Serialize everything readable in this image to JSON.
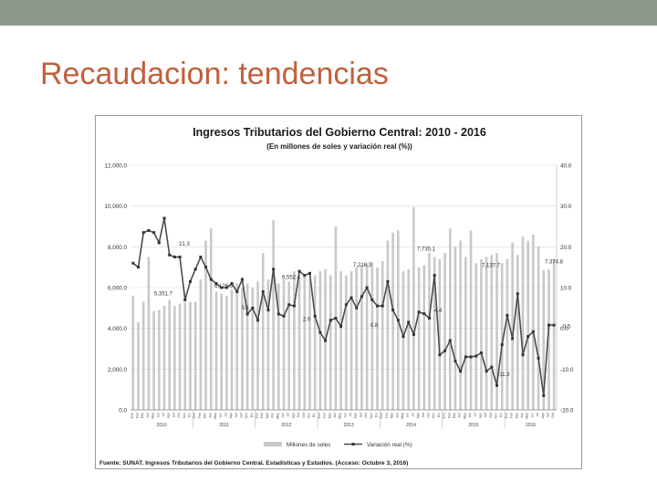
{
  "slide": {
    "title": "Recaudacion: tendencias"
  },
  "colors": {
    "title": "#c0603c",
    "topbar": "#8c9a8e",
    "bars": "#c8c8c8",
    "line": "#4d4d4d",
    "grid": "#d9d9d9"
  },
  "chart_data": {
    "type": "bar",
    "title": "Ingresos Tributarios del Gobierno Central: 2010 - 2016",
    "subtitle": "(En millones de soles y variación real (%))",
    "source": "Fuente: SUNAT. Ingresos Tributarios del Gobierno Central. Estadísticas y Estudios. (Acceso: Octubre 3, 2016)",
    "left_axis": {
      "ticks": [
        "12,000.0",
        "10,000.0",
        "8,000.0",
        "6,000.0",
        "4,000.0",
        "2,000.0",
        "0.0"
      ],
      "ylim": [
        0,
        12000
      ]
    },
    "right_axis": {
      "ticks": [
        "40.0",
        "30.0",
        "20.0",
        "10.0",
        "0.0",
        "-10.0",
        "-20.0"
      ],
      "ylim": [
        -20,
        40
      ]
    },
    "years": [
      "2010",
      "2011",
      "2012",
      "2013",
      "2014",
      "2015",
      "2016"
    ],
    "month_labels": [
      "Ene",
      "Feb",
      "Mar",
      "Abr",
      "May",
      "Jun",
      "Jul",
      "Ago",
      "Set",
      "Oct",
      "Nov",
      "Dic"
    ],
    "grid": true,
    "legend_position": "bottom",
    "series": [
      {
        "name": "Millones de soles",
        "type": "bar",
        "axis": "left",
        "values": [
          5600,
          4300,
          5300,
          7500,
          4850,
          4900,
          5100,
          5400,
          5100,
          5200,
          5300,
          5300,
          5300,
          6400,
          8300,
          8900,
          5800,
          5700,
          5600,
          5900,
          6200,
          6000,
          6200,
          6000,
          6300,
          7700,
          6400,
          9300,
          6200,
          6400,
          6300,
          6800,
          6500,
          6600,
          6400,
          6600,
          6800,
          6900,
          6600,
          9000,
          6800,
          6600,
          6800,
          7000,
          7100,
          7200,
          7250,
          7000,
          7300,
          8300,
          8700,
          8800,
          6800,
          6900,
          9950,
          7000,
          7100,
          7700,
          7500,
          7400,
          7700,
          8900,
          8000,
          8300,
          7500,
          8800,
          7200,
          7400,
          7500,
          7600,
          7700,
          7200,
          7400,
          8200,
          7600,
          8500,
          8300,
          8600,
          8000,
          6850,
          6900,
          7400
        ]
      },
      {
        "name": "Variación real (%)",
        "type": "line",
        "axis": "right",
        "values": [
          16,
          15,
          23.5,
          24,
          23.5,
          21,
          27,
          18,
          17.5,
          17.5,
          7,
          11.5,
          14.5,
          17.5,
          15,
          12,
          11,
          10,
          10,
          11,
          9,
          12,
          3.5,
          5,
          2,
          9,
          4.5,
          14.5,
          3.5,
          3,
          5.8,
          5.5,
          14,
          13,
          13.5,
          3,
          -1,
          -3,
          2,
          2.5,
          0.5,
          5.8,
          7.5,
          5,
          7.8,
          10,
          7,
          5.5,
          5.5,
          11.5,
          4.5,
          2,
          -2,
          1.5,
          -1.5,
          4,
          3.6,
          2.5,
          13,
          -6.5,
          -5.5,
          -3,
          -8,
          -10.5,
          -7,
          -7,
          -6.8,
          -6,
          -10.5,
          -9.5,
          -14,
          -4,
          3.2,
          -2.5,
          8.5,
          -6.5,
          -2,
          -0.8,
          -7.3,
          -16.5,
          0.8,
          0.8
        ]
      }
    ],
    "annotations": [
      "21.3",
      "5,351.7",
      "6,126.3",
      "5.1",
      "6,552.4",
      "2.0",
      "7,216.3",
      "0.8",
      "4.4",
      "7,735.1",
      "7,137.7",
      "7,374.8",
      "-11.3",
      "0.5"
    ]
  }
}
